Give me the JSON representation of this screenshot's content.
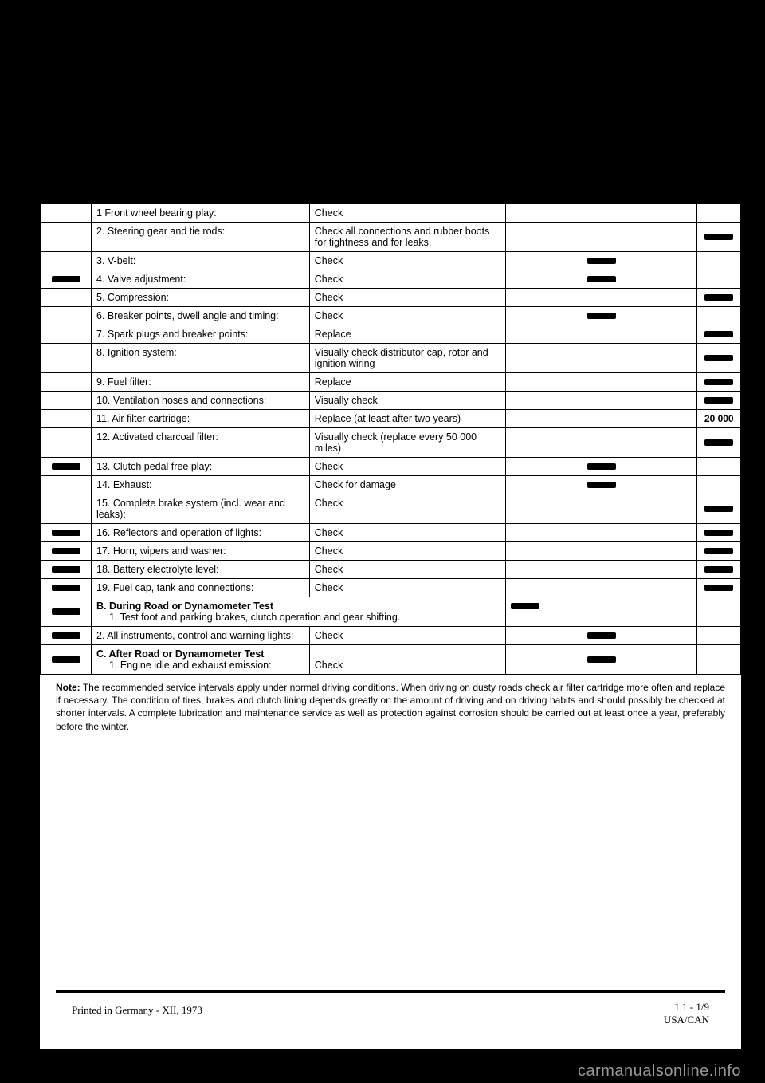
{
  "rows": [
    {
      "c1_mark": false,
      "label": "1   Front wheel bearing play:",
      "action": "Check",
      "c4_mark": false,
      "c5_mark": false
    },
    {
      "c1_mark": false,
      "label": "2. Steering gear and tie rods:",
      "action": "Check all connections and rubber boots for tightness and for leaks.",
      "c4_mark": false,
      "c5_mark": true
    },
    {
      "c1_mark": false,
      "label": "3. V-belt:",
      "action": "Check",
      "c4_mark": true,
      "c5_mark": false
    },
    {
      "c1_mark": true,
      "label": "4. Valve adjustment:",
      "action": "Check",
      "c4_mark": true,
      "c5_mark": false
    },
    {
      "c1_mark": false,
      "label": "5. Compression:",
      "action": "Check",
      "c4_mark": false,
      "c5_mark": true
    },
    {
      "c1_mark": false,
      "label": "6. Breaker points, dwell angle and timing:",
      "action": "Check",
      "c4_mark": true,
      "c5_mark": false
    },
    {
      "c1_mark": false,
      "label": "7. Spark plugs and breaker points:",
      "action": "Replace",
      "c4_mark": false,
      "c5_mark": true
    },
    {
      "c1_mark": false,
      "label": "8. Ignition system:",
      "action": "Visually check distributor cap, rotor and ignition wiring",
      "c4_mark": false,
      "c5_mark": true
    },
    {
      "c1_mark": false,
      "label": "9. Fuel filter:",
      "action": "Replace",
      "c4_mark": false,
      "c5_mark": true
    },
    {
      "c1_mark": false,
      "label": "10. Ventilation hoses and connections:",
      "action": "Visually check",
      "c4_mark": false,
      "c5_mark": true
    },
    {
      "c1_mark": false,
      "label": "11. Air filter cartridge:",
      "action": "Replace (at least after two years)",
      "c4_mark": false,
      "c5_text": "20 000"
    },
    {
      "c1_mark": false,
      "label": "12. Activated charcoal filter:",
      "action": "Visually check (replace every 50 000 miles)",
      "c4_mark": false,
      "c5_mark": true
    },
    {
      "c1_mark": true,
      "label": "13. Clutch pedal free play:",
      "action": "Check",
      "c4_mark": true,
      "c5_mark": false
    },
    {
      "c1_mark": false,
      "label": "14. Exhaust:",
      "action": "Check for damage",
      "c4_mark": true,
      "c5_mark": false
    },
    {
      "c1_mark": false,
      "label": "15. Complete brake system (incl. wear and leaks):",
      "action": "Check",
      "c4_mark": false,
      "c5_mark": true
    },
    {
      "c1_mark": true,
      "label": "16. Reflectors and operation of lights:",
      "action": "Check",
      "c4_mark": false,
      "c5_mark": true
    },
    {
      "c1_mark": true,
      "label": "17. Horn, wipers and washer:",
      "action": "Check",
      "c4_mark": false,
      "c5_mark": true
    },
    {
      "c1_mark": true,
      "label": "18. Battery electrolyte level:",
      "action": "Check",
      "c4_mark": false,
      "c5_mark": true
    },
    {
      "c1_mark": true,
      "label": "19. Fuel cap, tank and connections:",
      "action": "Check",
      "c4_mark": false,
      "c5_mark": true
    }
  ],
  "sectionB": {
    "title": "B. During Road or Dynamometer Test",
    "r1": {
      "c1_mark": true,
      "label": "1. Test foot and parking brakes, clutch operation and gear shifting.",
      "c4_mark": true,
      "c5_mark": false
    },
    "r2": {
      "c1_mark": true,
      "label": "2. All instruments, control and warning lights:",
      "action": "Check",
      "c4_mark": true,
      "c5_mark": false
    }
  },
  "sectionC": {
    "title": "C. After Road or Dynamometer Test",
    "r1": {
      "c1_mark": true,
      "label": "1. Engine idle and exhaust emission:",
      "action": "Check",
      "c4_mark": true,
      "c5_mark": false
    }
  },
  "note_label": "Note:",
  "note_text": "The recommended service intervals apply under normal driving conditions. When driving on dusty roads check air filter cartridge more often and replace if necessary. The condition of tires, brakes and clutch lining depends greatly on the amount of driving and on driving habits and should possibly be checked at shorter intervals. A complete lubrication and maintenance service as well as protection against corrosion should be carried out at least once a year, preferably before the winter.",
  "footer_left": "Printed in Germany  -  XII, 1973",
  "footer_right_1": "1.1 - 1/9",
  "footer_right_2": "USA/CAN",
  "watermark": "carmanualsonline.info"
}
